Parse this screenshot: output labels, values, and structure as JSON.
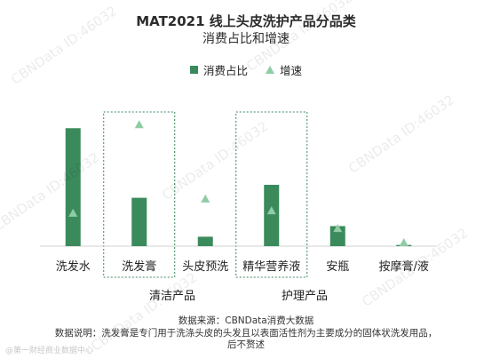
{
  "title_line1": "MAT2021 线上头皮洗护产品分品类",
  "title_line2": "消费占比和增速",
  "legend": {
    "share": "消费占比",
    "growth": "增速"
  },
  "colors": {
    "bar": "#3a8a5c",
    "growth_marker": "#8fcca4",
    "box": "#3a8a5c"
  },
  "chart_data": {
    "type": "bar",
    "title": "MAT2021 线上头皮洗护产品分品类消费占比和增速",
    "categories": [
      "洗发水",
      "洗发膏",
      "头皮预洗",
      "精华营养液",
      "安瓶",
      "按摩膏/液"
    ],
    "series": [
      {
        "name": "消费占比",
        "kind": "bar",
        "values": [
          100,
          41,
          8,
          52,
          17,
          1
        ]
      },
      {
        "name": "增速",
        "kind": "triangle",
        "values": [
          28,
          103,
          40,
          30,
          15,
          3
        ]
      }
    ],
    "groups": [
      {
        "label": "清洁产品",
        "members": [
          "洗发膏",
          "头皮预洗"
        ]
      },
      {
        "label": "护理产品",
        "members": [
          "精华营养液",
          "安瓶"
        ]
      }
    ],
    "highlight_boxes": [
      "洗发膏",
      "精华营养液"
    ],
    "ylim": [
      0,
      110
    ],
    "grid": false
  },
  "footnotes": {
    "source": "数据来源：CBNData消费大数据",
    "desc1": "数据说明：洗发膏是专门用于洗涤头皮的头发且以表面活性剂为主要成分的固体状洗发用品，",
    "desc2": "后不赘述"
  },
  "watermark": "CBNData ID:46032",
  "logo_text": "@第一财经商业数据中心"
}
